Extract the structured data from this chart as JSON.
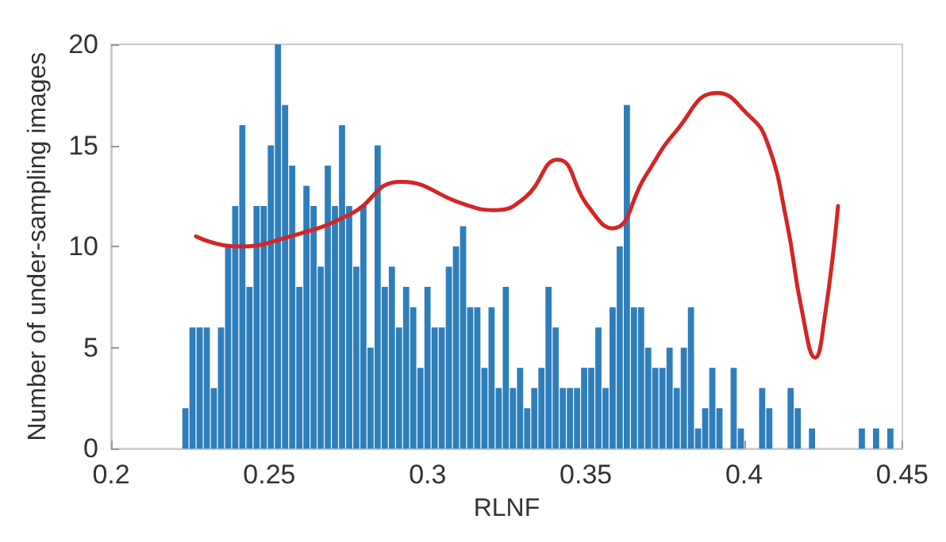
{
  "chart_data": {
    "type": "histogram",
    "xlabel": "RLNF",
    "ylabel": "Number of under-sampling images",
    "color": "#2e7ebc",
    "bins": [
      0.2225,
      0.22475,
      0.227,
      0.22925,
      0.2315,
      0.23375,
      0.236,
      0.23825,
      0.2405,
      0.24275,
      0.245,
      0.24725,
      0.2495,
      0.25175,
      0.254,
      0.25625,
      0.2585,
      0.26075,
      0.263,
      0.26525,
      0.2675,
      0.26975,
      0.272,
      0.27425,
      0.2765,
      0.27875,
      0.281,
      0.28325,
      0.2855,
      0.28775,
      0.29,
      0.29225,
      0.2945,
      0.29675,
      0.299,
      0.30125,
      0.3035,
      0.30575,
      0.308,
      0.31025,
      0.3125,
      0.31475,
      0.317,
      0.31925,
      0.3215,
      0.32375,
      0.326,
      0.32825,
      0.3305,
      0.33275,
      0.335,
      0.33725,
      0.3395,
      0.34175,
      0.344,
      0.34625,
      0.3485,
      0.35075,
      0.353,
      0.35525,
      0.3575,
      0.35975,
      0.362,
      0.36425,
      0.3665,
      0.36875,
      0.371,
      0.37325,
      0.3755,
      0.37775,
      0.38,
      0.38225,
      0.3845,
      0.38675,
      0.389,
      0.39125,
      0.3935,
      0.39575,
      0.398,
      0.40025,
      0.4025,
      0.40475,
      0.407,
      0.40925,
      0.4115,
      0.41375,
      0.416,
      0.41825,
      0.4205,
      0.42275,
      0.425,
      0.42725,
      0.4295,
      0.43175,
      0.434,
      0.43625,
      0.4385,
      0.44075,
      0.443,
      0.44525,
      0.4475
    ],
    "values": [
      2,
      6,
      6,
      6,
      3,
      6,
      10,
      12,
      16,
      8,
      12,
      12,
      15,
      20,
      17,
      14,
      8,
      13,
      12,
      9,
      14,
      12,
      16,
      12,
      9,
      12,
      5,
      15,
      8,
      9,
      6,
      8,
      7,
      4,
      8,
      6,
      6,
      9,
      10,
      11,
      7,
      7,
      4,
      7,
      3,
      8,
      3,
      4,
      2,
      3,
      4,
      8,
      6,
      3,
      3,
      3,
      4,
      4,
      6,
      3,
      7,
      10,
      17,
      7,
      7,
      5,
      4,
      4,
      5,
      3,
      5,
      7,
      1,
      2,
      4,
      2,
      0,
      4,
      1,
      0,
      0,
      3,
      2,
      0,
      0,
      3,
      2,
      0,
      1,
      0,
      0,
      0,
      0,
      0,
      0,
      1,
      0,
      1,
      0,
      1
    ],
    "series": [
      {
        "type": "line",
        "color": "#d42525",
        "x": [
          0.2268,
          0.2397,
          0.2565,
          0.2756,
          0.2914,
          0.3115,
          0.321,
          0.3306,
          0.3411,
          0.3507,
          0.3584,
          0.3689,
          0.3785,
          0.3914,
          0.4014,
          0.4072,
          0.4134,
          0.4182,
          0.4225,
          0.4254,
          0.4297
        ],
        "values": [
          10.5,
          10.0,
          10.5,
          11.6,
          13.2,
          12.1,
          11.8,
          12.4,
          14.3,
          12.0,
          10.9,
          13.5,
          15.7,
          17.6,
          16.5,
          15.2,
          11.3,
          6.9,
          4.5,
          6.4,
          12.0
        ]
      }
    ],
    "xlim": [
      0.2,
      0.45
    ],
    "xticks": [
      0.2,
      0.25,
      0.3,
      0.35,
      0.4,
      0.45
    ],
    "ylim": [
      0,
      20
    ],
    "yticks": [
      0,
      5,
      10,
      15,
      20
    ],
    "grid": false,
    "marker": "none",
    "line_style": "solid"
  }
}
